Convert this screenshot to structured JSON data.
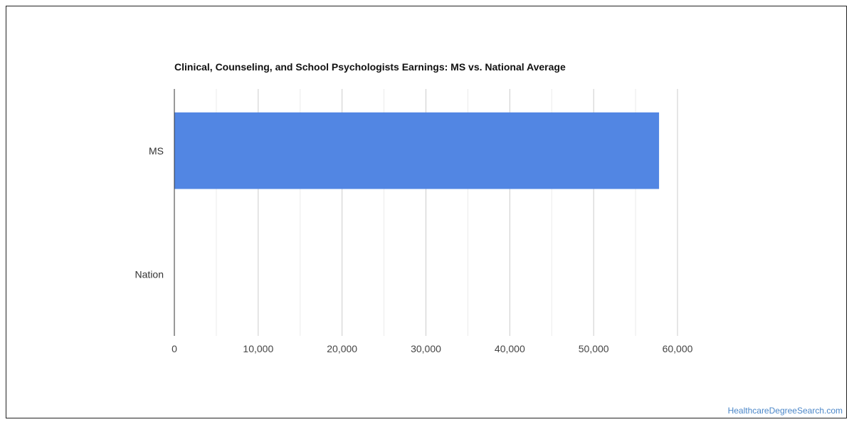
{
  "footer": {
    "watermark": "HealthcareDegreeSearch.com"
  },
  "chart_data": {
    "type": "bar",
    "orientation": "horizontal",
    "title": "Clinical, Counseling, and School Psychologists Earnings: MS vs. National Average",
    "xlabel": "",
    "ylabel": "",
    "categories": [
      "MS",
      "Nation"
    ],
    "values": [
      57800,
      0
    ],
    "xlim": [
      0,
      60000
    ],
    "ticks": [
      0,
      10000,
      20000,
      30000,
      40000,
      50000,
      60000
    ],
    "tick_labels": [
      "0",
      "10,000",
      "20,000",
      "30,000",
      "40,000",
      "50,000",
      "60,000"
    ],
    "grid": true,
    "bar_color": "#5286e3",
    "legend": "none"
  }
}
